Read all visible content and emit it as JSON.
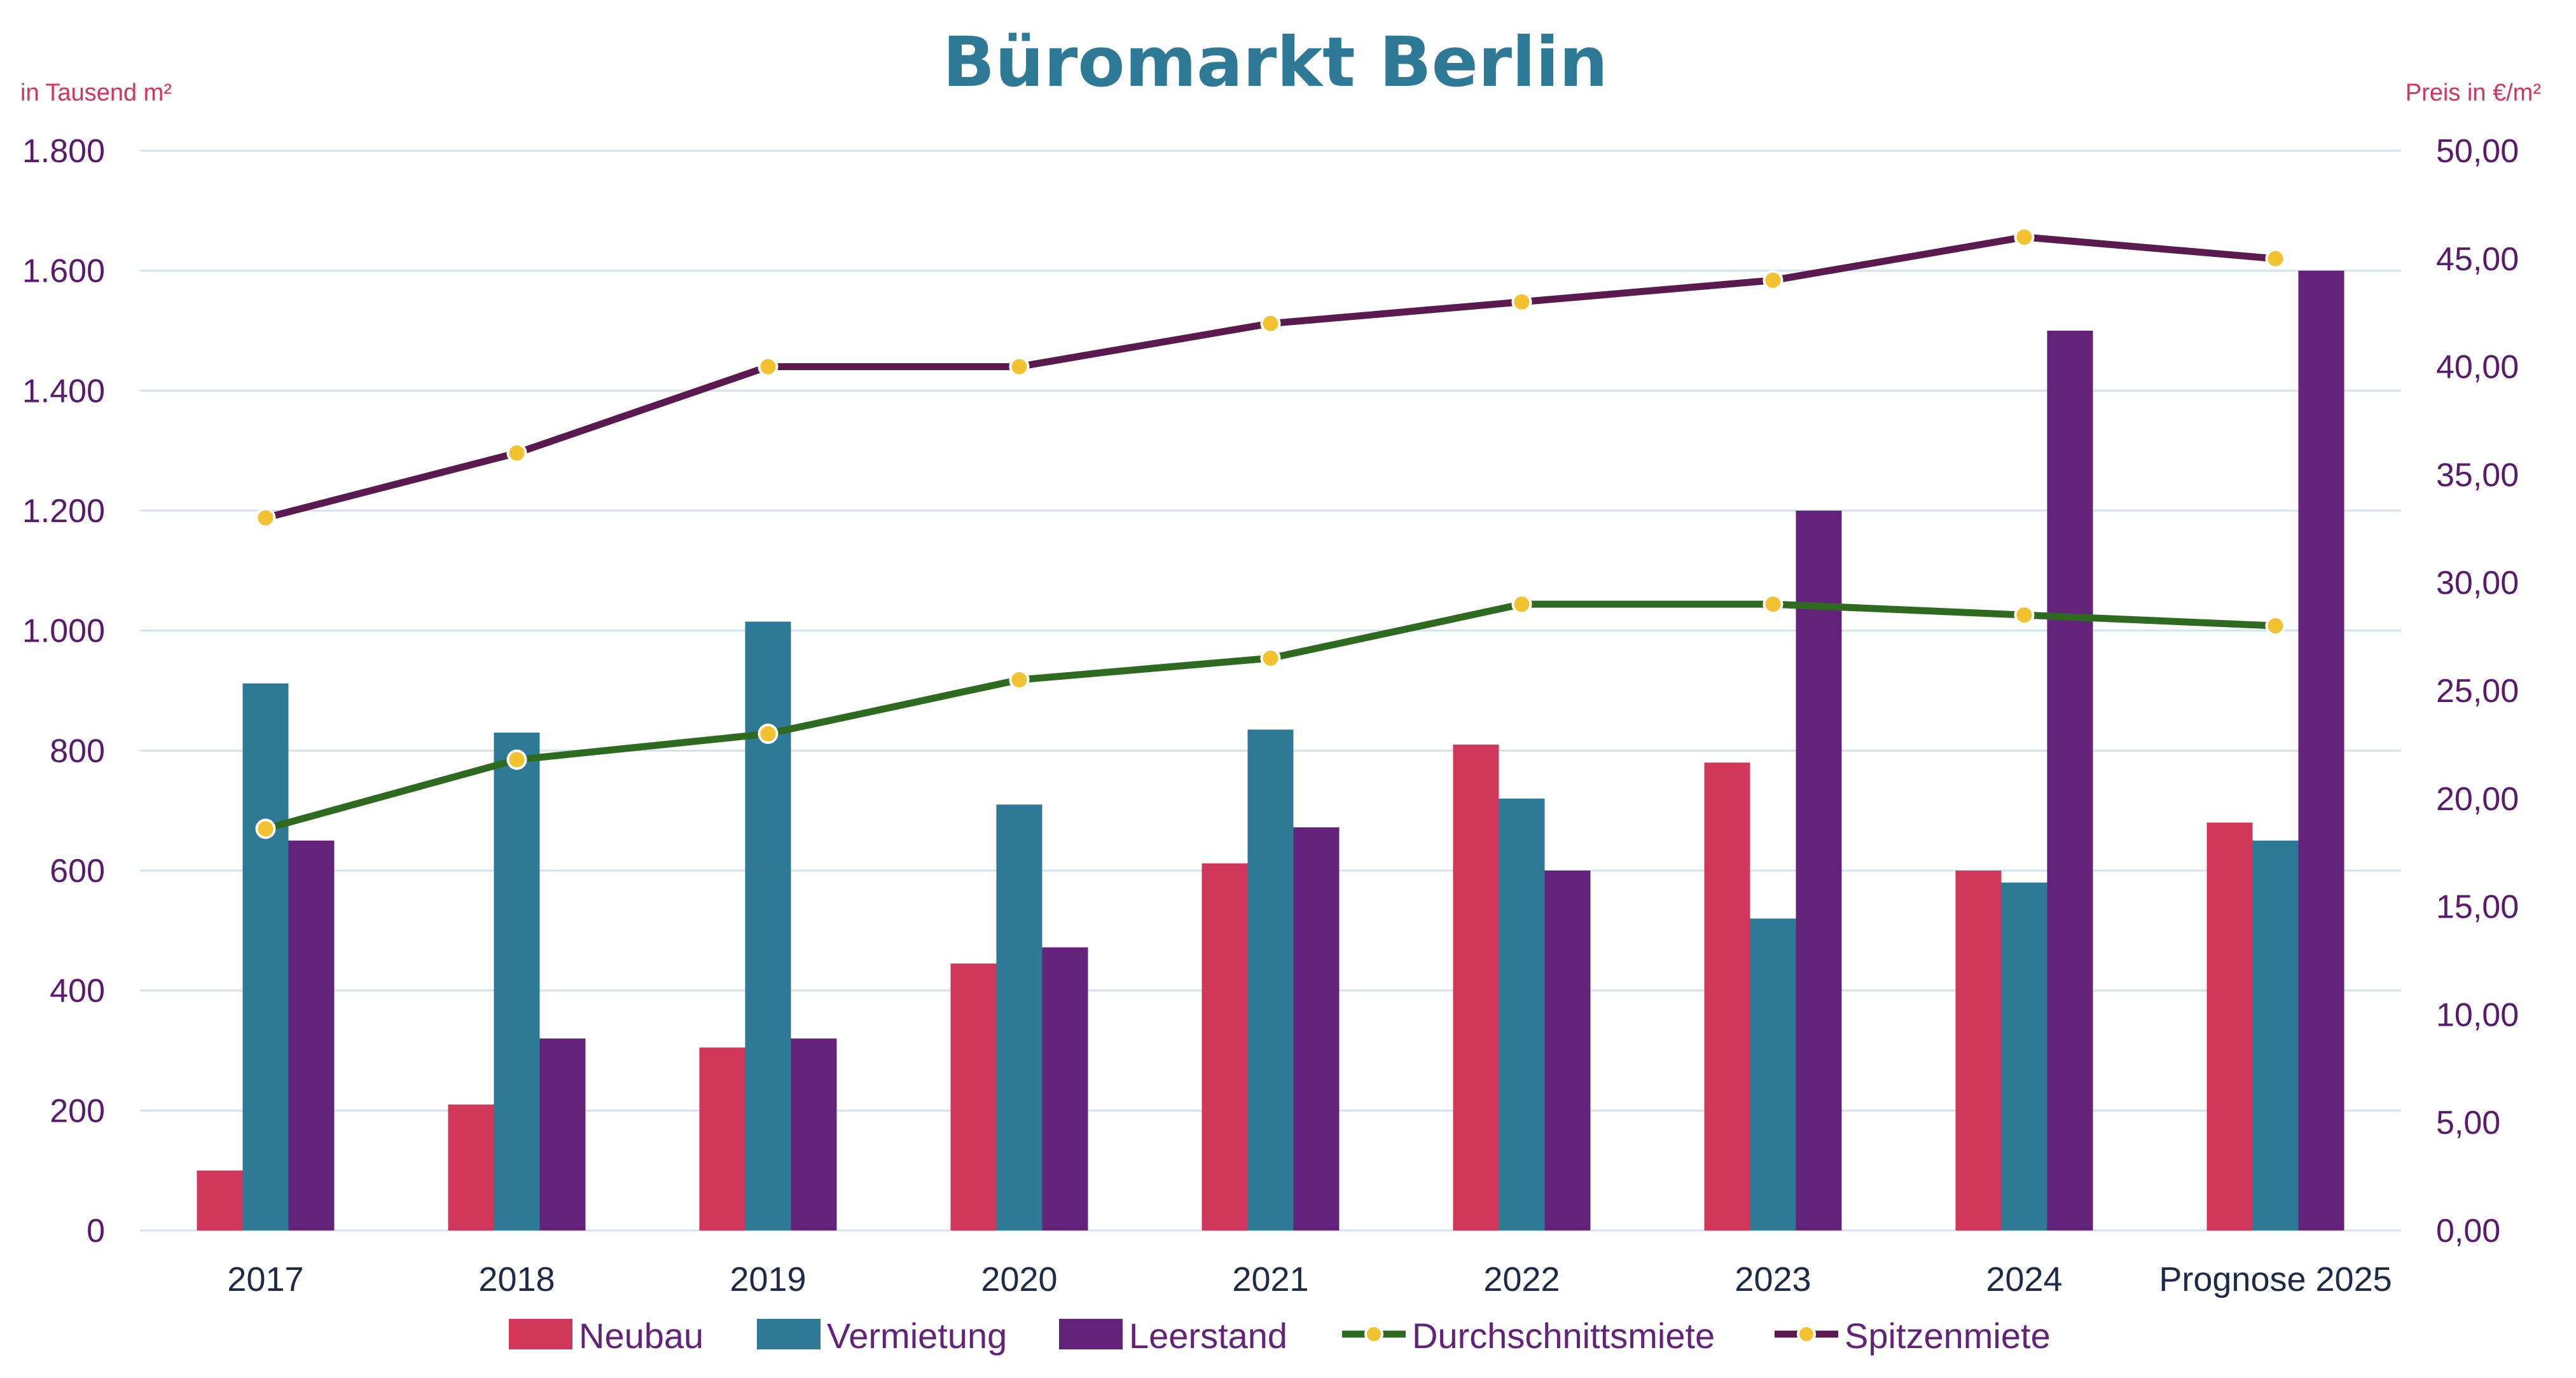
{
  "chart_data": {
    "type": "bar",
    "title": "Büromarkt Berlin",
    "left_axis_label": "in Tausend m²",
    "right_axis_label": "Preis in €/m²",
    "categories": [
      "2017",
      "2018",
      "2019",
      "2020",
      "2021",
      "2022",
      "2023",
      "2024",
      "Prognose 2025"
    ],
    "y_left": {
      "min": 0,
      "max": 1800,
      "ticks": [
        0,
        200,
        400,
        600,
        800,
        1000,
        1200,
        1400,
        1600,
        1800
      ],
      "tick_labels": [
        "0",
        "200",
        "400",
        "600",
        "800",
        "1.000",
        "1.200",
        "1.400",
        "1.600",
        "1.800"
      ]
    },
    "y_right": {
      "min": 0,
      "max": 50,
      "ticks": [
        0,
        5,
        10,
        15,
        20,
        25,
        30,
        35,
        40,
        45,
        50
      ],
      "tick_labels": [
        "0,00",
        "5,00",
        "10,00",
        "15,00",
        "20,00",
        "25,00",
        "30,00",
        "35,00",
        "40,00",
        "45,00",
        "50,00"
      ]
    },
    "grid": true,
    "legend_position": "bottom",
    "bar_series": [
      {
        "name": "Neubau",
        "color": "#d0375a",
        "values": [
          100,
          210,
          305,
          445,
          612,
          810,
          780,
          600,
          680
        ]
      },
      {
        "name": "Vermietung",
        "color": "#2e7a96",
        "values": [
          912,
          830,
          1015,
          710,
          835,
          720,
          520,
          580,
          650
        ]
      },
      {
        "name": "Leerstand",
        "color": "#64237a",
        "values": [
          650,
          320,
          320,
          472,
          672,
          600,
          1200,
          1500,
          1600
        ]
      }
    ],
    "line_series": [
      {
        "name": "Durchschnittsmiete",
        "color": "#2e6b21",
        "marker_color": "#f2c230",
        "axis": "right",
        "values": [
          18.6,
          21.8,
          23.0,
          25.5,
          26.5,
          29.0,
          29.0,
          28.5,
          28.0
        ]
      },
      {
        "name": "Spitzenmiete",
        "color": "#5a1a4f",
        "marker_color": "#f2c230",
        "axis": "right",
        "values": [
          33.0,
          36.0,
          40.0,
          40.0,
          42.0,
          43.0,
          44.0,
          46.0,
          45.0
        ]
      }
    ],
    "colors": {
      "title": "#2e7a96",
      "axis_title": "#d0375a",
      "tick": "#5a1a6e",
      "category": "#1e2a4a",
      "legend_text": "#64237a",
      "grid": "#d3e3ef"
    }
  }
}
